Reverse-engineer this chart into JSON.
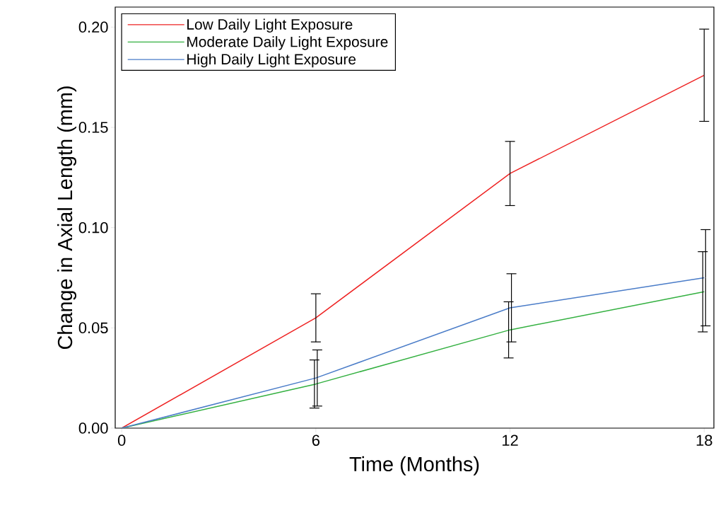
{
  "chart_data": {
    "type": "line",
    "xlabel": "Time (Months)",
    "ylabel": "Change in Axial Length (mm)",
    "x": [
      0,
      6,
      12,
      18
    ],
    "series": [
      {
        "name": "Low Daily Light Exposure",
        "color": "#ee2222",
        "values": [
          0,
          0.055,
          0.127,
          0.176
        ],
        "errors": [
          null,
          0.012,
          0.016,
          0.023
        ]
      },
      {
        "name": "Moderate Daily Light Exposure",
        "color": "#33b040",
        "values": [
          0,
          0.022,
          0.049,
          0.068
        ],
        "errors": [
          null,
          0.012,
          0.014,
          0.02
        ]
      },
      {
        "name": "High Daily Light Exposure",
        "color": "#4a7cc8",
        "values": [
          0,
          0.025,
          0.06,
          0.075
        ],
        "errors": [
          null,
          0.014,
          0.017,
          0.024
        ]
      }
    ],
    "xlim": [
      -0.2,
      18.3
    ],
    "ylim": [
      0,
      0.21
    ],
    "xticks": [
      0,
      6,
      12,
      18
    ],
    "yticks": [
      {
        "value": 0,
        "label": "0.00"
      },
      {
        "value": 0.05,
        "label": "0.05"
      },
      {
        "value": 0.1,
        "label": "0.10"
      },
      {
        "value": 0.15,
        "label": "0.15"
      },
      {
        "value": 0.2,
        "label": "0.20"
      }
    ],
    "legend": "top left",
    "grid": false,
    "marker": "none",
    "line_style": "solid"
  }
}
